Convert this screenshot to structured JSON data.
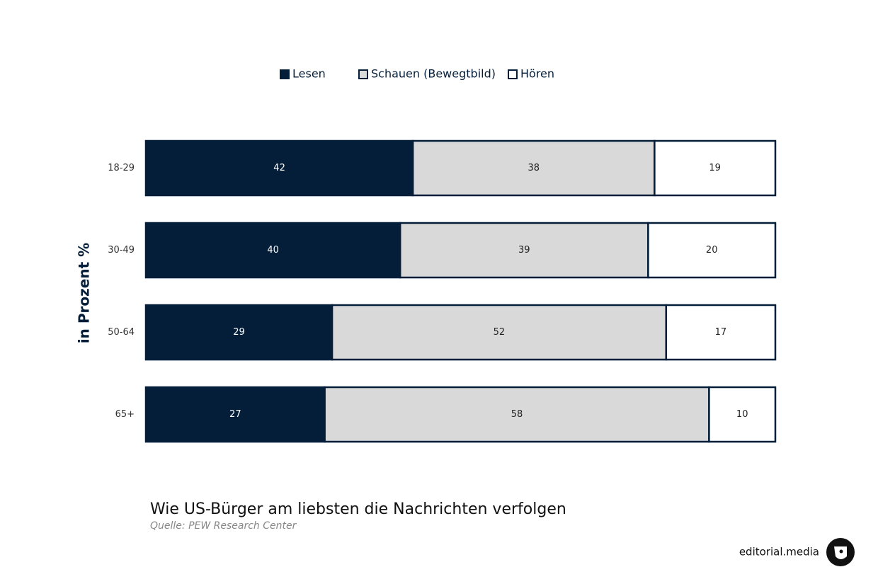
{
  "chart_data": {
    "type": "bar",
    "orientation": "horizontal",
    "stack": "percent",
    "title": "Wie US-Bürger am liebsten die Nachrichten verfolgen",
    "subtitle": "Quelle: PEW Research Center",
    "y_label": "in Prozent %",
    "categories": [
      "18-29",
      "30-49",
      "50-64",
      "65+"
    ],
    "series": [
      {
        "name": "Lesen",
        "color": "#041e3a",
        "label_color": "#ffffff",
        "values": [
          42,
          40,
          29,
          27
        ]
      },
      {
        "name": "Schauen (Bewegtbild)",
        "color": "#d9d9d9",
        "label_color": "#222222",
        "values": [
          38,
          39,
          52,
          58
        ]
      },
      {
        "name": "Hören",
        "color": "#ffffff",
        "label_color": "#222222",
        "values": [
          19,
          20,
          17,
          10
        ]
      }
    ],
    "legend": "top",
    "brand": "editorial.media"
  }
}
